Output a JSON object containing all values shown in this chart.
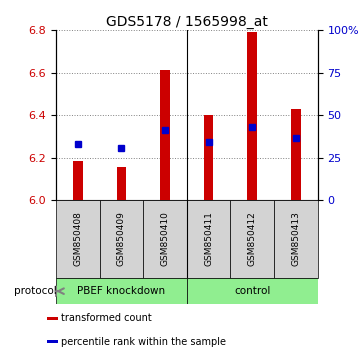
{
  "title": "GDS5178 / 1565998_at",
  "samples": [
    "GSM850408",
    "GSM850409",
    "GSM850410",
    "GSM850411",
    "GSM850412",
    "GSM850413"
  ],
  "bar_tops": [
    6.185,
    6.155,
    6.61,
    6.4,
    6.79,
    6.43
  ],
  "bar_base": 6.0,
  "percentile_values": [
    6.265,
    6.245,
    6.33,
    6.275,
    6.345,
    6.29
  ],
  "ylim_left": [
    6.0,
    6.8
  ],
  "ylim_right": [
    0,
    100
  ],
  "yticks_left": [
    6.0,
    6.2,
    6.4,
    6.6,
    6.8
  ],
  "yticks_right": [
    0,
    25,
    50,
    75,
    100
  ],
  "ytick_labels_right": [
    "0",
    "25",
    "50",
    "75",
    "100%"
  ],
  "bar_color": "#cc0000",
  "percentile_color": "#0000cc",
  "group1_label": "PBEF knockdown",
  "group2_label": "control",
  "group1_indices": [
    0,
    1,
    2
  ],
  "group2_indices": [
    3,
    4,
    5
  ],
  "group_bg_color": "#90ee90",
  "sample_bg_color": "#d3d3d3",
  "protocol_label": "protocol",
  "legend_bar_label": "transformed count",
  "legend_pct_label": "percentile rank within the sample",
  "title_fontsize": 10,
  "axis_fontsize": 8,
  "bar_width": 0.22
}
